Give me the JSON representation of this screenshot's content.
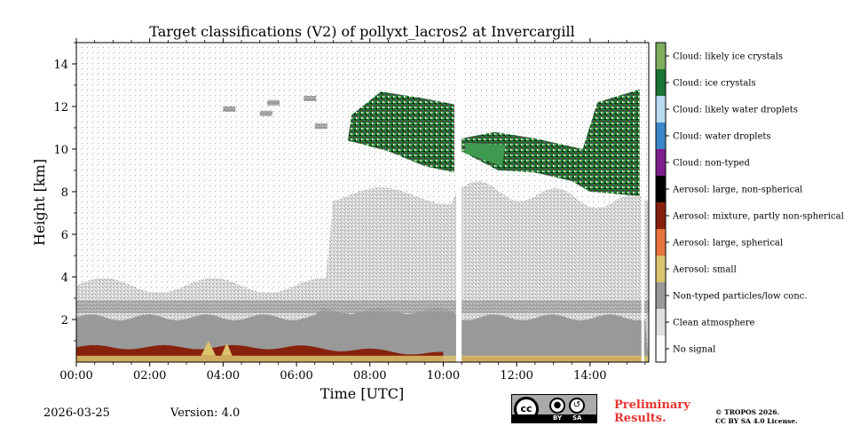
{
  "chart_data": {
    "type": "heatmap",
    "title": "Target classifications (V2) of pollyxt_lacros2 at Invercargill",
    "xlabel": "Time [UTC]",
    "ylabel": "Height [km]",
    "xlim": [
      0,
      15.6
    ],
    "ylim": [
      0,
      15
    ],
    "x_ticks": [
      {
        "value": 0,
        "label": "00:00"
      },
      {
        "value": 2,
        "label": "02:00"
      },
      {
        "value": 4,
        "label": "04:00"
      },
      {
        "value": 6,
        "label": "06:00"
      },
      {
        "value": 8,
        "label": "08:00"
      },
      {
        "value": 10,
        "label": "10:00"
      },
      {
        "value": 12,
        "label": "12:00"
      },
      {
        "value": 14,
        "label": "14:00"
      }
    ],
    "y_ticks": [
      {
        "value": 2,
        "label": "2"
      },
      {
        "value": 4,
        "label": "4"
      },
      {
        "value": 6,
        "label": "6"
      },
      {
        "value": 8,
        "label": "8"
      },
      {
        "value": 10,
        "label": "10"
      },
      {
        "value": 12,
        "label": "12"
      },
      {
        "value": 14,
        "label": "14"
      }
    ],
    "classes": [
      {
        "label": "No signal",
        "color": "#ffffff"
      },
      {
        "label": "Clean atmosphere",
        "color": "#e0e0e0"
      },
      {
        "label": "Non-typed particles/low conc.",
        "color": "#999999"
      },
      {
        "label": "Aerosol: small",
        "color": "#dcc36e"
      },
      {
        "label": "Aerosol: large, spherical",
        "color": "#e8733c"
      },
      {
        "label": "Aerosol: mixture, partly non-spherical",
        "color": "#87210c"
      },
      {
        "label": "Aerosol: large, non-spherical",
        "color": "#000000"
      },
      {
        "label": "Cloud: non-typed",
        "color": "#7e1e8c"
      },
      {
        "label": "Cloud: water droplets",
        "color": "#3b87c8"
      },
      {
        "label": "Cloud: likely water droplets",
        "color": "#b7d9f1"
      },
      {
        "label": "Cloud: ice crystals",
        "color": "#1a7434"
      },
      {
        "label": "Cloud: likely ice crystals",
        "color": "#7eae5e"
      }
    ],
    "regions": [
      {
        "class": "Non-typed particles/low conc.",
        "x": [
          0,
          15.6
        ],
        "height_km": [
          0.5,
          2.3
        ]
      },
      {
        "class": "Clean atmosphere",
        "x": [
          0,
          15.6
        ],
        "height_km": [
          2.3,
          5.0
        ]
      },
      {
        "class": "Aerosol: mixture, partly non-spherical",
        "x": [
          0,
          10.0
        ],
        "height_km": [
          0,
          0.8
        ]
      },
      {
        "class": "Aerosol: small",
        "x": [
          0,
          15.6
        ],
        "height_km": [
          0,
          0.3
        ]
      },
      {
        "class": "Cloud: ice crystals",
        "x": [
          7.5,
          15.5
        ],
        "height_km": [
          8.0,
          12.5
        ]
      }
    ],
    "data_gaps": [
      {
        "x": [
          10.35,
          10.5
        ]
      },
      {
        "x": [
          15.4,
          15.45
        ]
      }
    ]
  },
  "footer": {
    "date": "2026-03-25",
    "version": "Version: 4.0",
    "cc_label_by": "BY",
    "cc_label_sa": "SA",
    "cc_text": "cc",
    "preliminary_line1": "Preliminary",
    "preliminary_line2": "Results.",
    "copyright_line1": "© TROPOS 2026.",
    "copyright_line2": "CC BY SA 4.0 License."
  }
}
